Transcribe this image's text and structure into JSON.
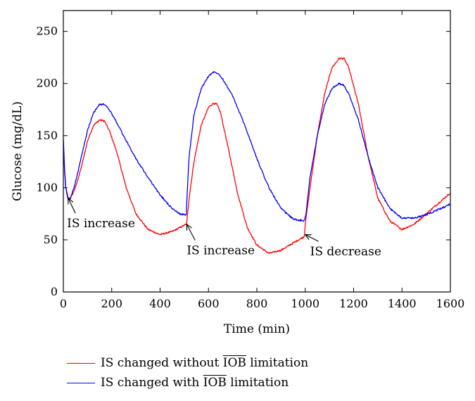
{
  "chart_data": {
    "type": "line",
    "xlabel": "Time (min)",
    "ylabel": "Glucose (mg/dL)",
    "xlim": [
      0,
      1600
    ],
    "ylim": [
      0,
      270
    ],
    "xticks": [
      0,
      200,
      400,
      600,
      800,
      1000,
      1200,
      1400,
      1600
    ],
    "yticks": [
      0,
      50,
      100,
      150,
      200,
      250
    ],
    "grid": false,
    "legend_position": "bottom",
    "series": [
      {
        "name_parts": [
          "IS changed without ",
          "IOB",
          " limitation"
        ],
        "color": "#ff0000",
        "x": [
          0,
          5,
          10,
          20,
          30,
          50,
          75,
          100,
          125,
          150,
          170,
          190,
          220,
          260,
          300,
          350,
          400,
          450,
          500,
          508,
          510,
          520,
          540,
          570,
          600,
          620,
          635,
          650,
          680,
          720,
          760,
          800,
          850,
          900,
          950,
          995,
          997,
          1000,
          1020,
          1050,
          1080,
          1110,
          1140,
          1160,
          1180,
          1220,
          1260,
          1300,
          1350,
          1400,
          1450,
          1500,
          1550,
          1600
        ],
        "y": [
          140,
          115,
          100,
          90,
          90,
          100,
          120,
          145,
          160,
          165,
          164,
          155,
          135,
          100,
          75,
          60,
          55,
          58,
          64,
          65,
          66,
          90,
          125,
          160,
          177,
          181,
          180,
          172,
          140,
          95,
          62,
          45,
          37,
          40,
          47,
          53,
          55,
          65,
          100,
          150,
          190,
          215,
          224,
          224,
          215,
          180,
          130,
          90,
          68,
          60,
          65,
          75,
          85,
          95
        ]
      },
      {
        "name_parts": [
          "IS changed with ",
          "IOB",
          " limitation"
        ],
        "color": "#0000ff",
        "x": [
          0,
          5,
          10,
          20,
          30,
          50,
          75,
          100,
          125,
          150,
          170,
          190,
          220,
          260,
          300,
          350,
          400,
          450,
          480,
          508,
          512,
          520,
          540,
          570,
          600,
          620,
          640,
          660,
          700,
          750,
          800,
          850,
          900,
          950,
          995,
          998,
          1003,
          1020,
          1050,
          1080,
          1110,
          1140,
          1160,
          1180,
          1220,
          1260,
          1300,
          1350,
          1400,
          1450,
          1500,
          1550,
          1600
        ],
        "y": [
          148,
          118,
          100,
          88,
          90,
          105,
          130,
          155,
          172,
          180,
          180,
          175,
          163,
          145,
          128,
          110,
          93,
          80,
          75,
          74,
          95,
          130,
          170,
          195,
          207,
          211,
          210,
          204,
          188,
          160,
          128,
          100,
          80,
          70,
          68,
          70,
          75,
          110,
          150,
          180,
          195,
          200,
          198,
          190,
          165,
          130,
          100,
          80,
          71,
          71,
          74,
          79,
          84
        ]
      }
    ],
    "annotations": [
      {
        "text": "IS increase",
        "target_x": 20,
        "target_y": 90,
        "text_x": 15,
        "text_y": 62
      },
      {
        "text": "IS increase",
        "target_x": 510,
        "target_y": 65,
        "text_x": 510,
        "text_y": 36
      },
      {
        "text": "IS decrease",
        "target_x": 1000,
        "target_y": 55,
        "text_x": 1020,
        "text_y": 35
      }
    ]
  }
}
